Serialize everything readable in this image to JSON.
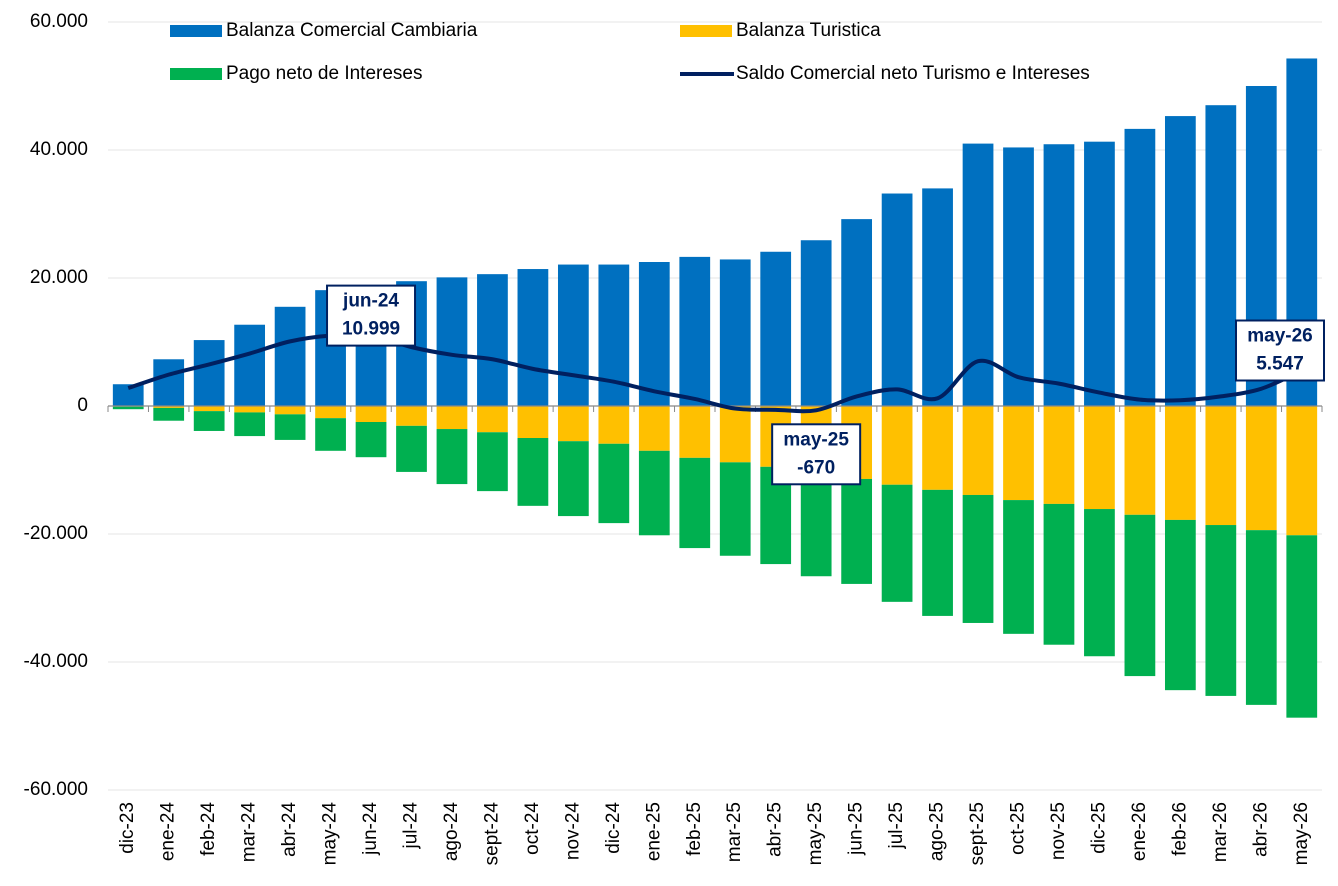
{
  "chart_data": {
    "type": "bar",
    "categories": [
      "dic-23",
      "ene-24",
      "feb-24",
      "mar-24",
      "abr-24",
      "may-24",
      "jun-24",
      "jul-24",
      "ago-24",
      "sept-24",
      "oct-24",
      "nov-24",
      "dic-24",
      "ene-25",
      "feb-25",
      "mar-25",
      "abr-25",
      "may-25",
      "jun-25",
      "jul-25",
      "ago-25",
      "sept-25",
      "oct-25",
      "nov-25",
      "dic-25",
      "ene-26",
      "feb-26",
      "mar-26",
      "abr-26",
      "may-26"
    ],
    "series": [
      {
        "name": "Balanza Comercial Cambiaria",
        "color": "#0070c0",
        "stack": "pos",
        "values": [
          3400,
          7300,
          10300,
          12700,
          15500,
          18100,
          18900,
          19500,
          20100,
          20600,
          21400,
          22100,
          22100,
          22500,
          23300,
          22900,
          24100,
          25900,
          29200,
          33200,
          34000,
          41000,
          40400,
          40900,
          41300,
          43300,
          45300,
          47000,
          50000,
          54300
        ]
      },
      {
        "name": "Balanza Turistica",
        "color": "#ffc000",
        "stack": "neg",
        "values": [
          -100,
          -300,
          -800,
          -1000,
          -1300,
          -1900,
          -2500,
          -3100,
          -3600,
          -4100,
          -5000,
          -5500,
          -5900,
          -7000,
          -8100,
          -8800,
          -9500,
          -10500,
          -11400,
          -12300,
          -13100,
          -13900,
          -14700,
          -15300,
          -16100,
          -17000,
          -17800,
          -18600,
          -19400,
          -20200
        ]
      },
      {
        "name": "Pago neto de Intereses",
        "color": "#00b050",
        "stack": "neg",
        "values": [
          -400,
          -2000,
          -3100,
          -3700,
          -4000,
          -5100,
          -5500,
          -7200,
          -8600,
          -9200,
          -10600,
          -11700,
          -12400,
          -13200,
          -14100,
          -14600,
          -15200,
          -16100,
          -16400,
          -18300,
          -19700,
          -20000,
          -20900,
          -22000,
          -23000,
          -25200,
          -26600,
          -26700,
          -27300,
          -28500
        ]
      },
      {
        "name": "Saldo Comercial neto Turismo e Intereses",
        "color": "#002060",
        "kind": "line",
        "values": [
          2800,
          4900,
          6500,
          8200,
          10100,
          11000,
          10999,
          9200,
          8000,
          7300,
          5800,
          4800,
          3800,
          2300,
          1100,
          -400,
          -600,
          -670,
          1500,
          2600,
          1200,
          7000,
          4500,
          3500,
          2100,
          1000,
          900,
          1500,
          2700,
          5547
        ]
      }
    ],
    "annotations": [
      {
        "category": "jun-24",
        "value_label": "10.999",
        "value": 10999
      },
      {
        "category": "may-25",
        "value_label": "-670",
        "value": -670
      },
      {
        "category": "may-26",
        "value_label": "5.547",
        "value": 5547
      }
    ],
    "ylim": [
      -60000,
      60000
    ],
    "yticks": [
      {
        "value": -60000,
        "label": "-60.000"
      },
      {
        "value": -40000,
        "label": "-40.000"
      },
      {
        "value": -20000,
        "label": "-20.000"
      },
      0,
      {
        "value": 20000,
        "label": "20.000"
      },
      {
        "value": 40000,
        "label": "40.000"
      },
      {
        "value": 60000,
        "label": "60.000"
      }
    ],
    "grid": true
  }
}
